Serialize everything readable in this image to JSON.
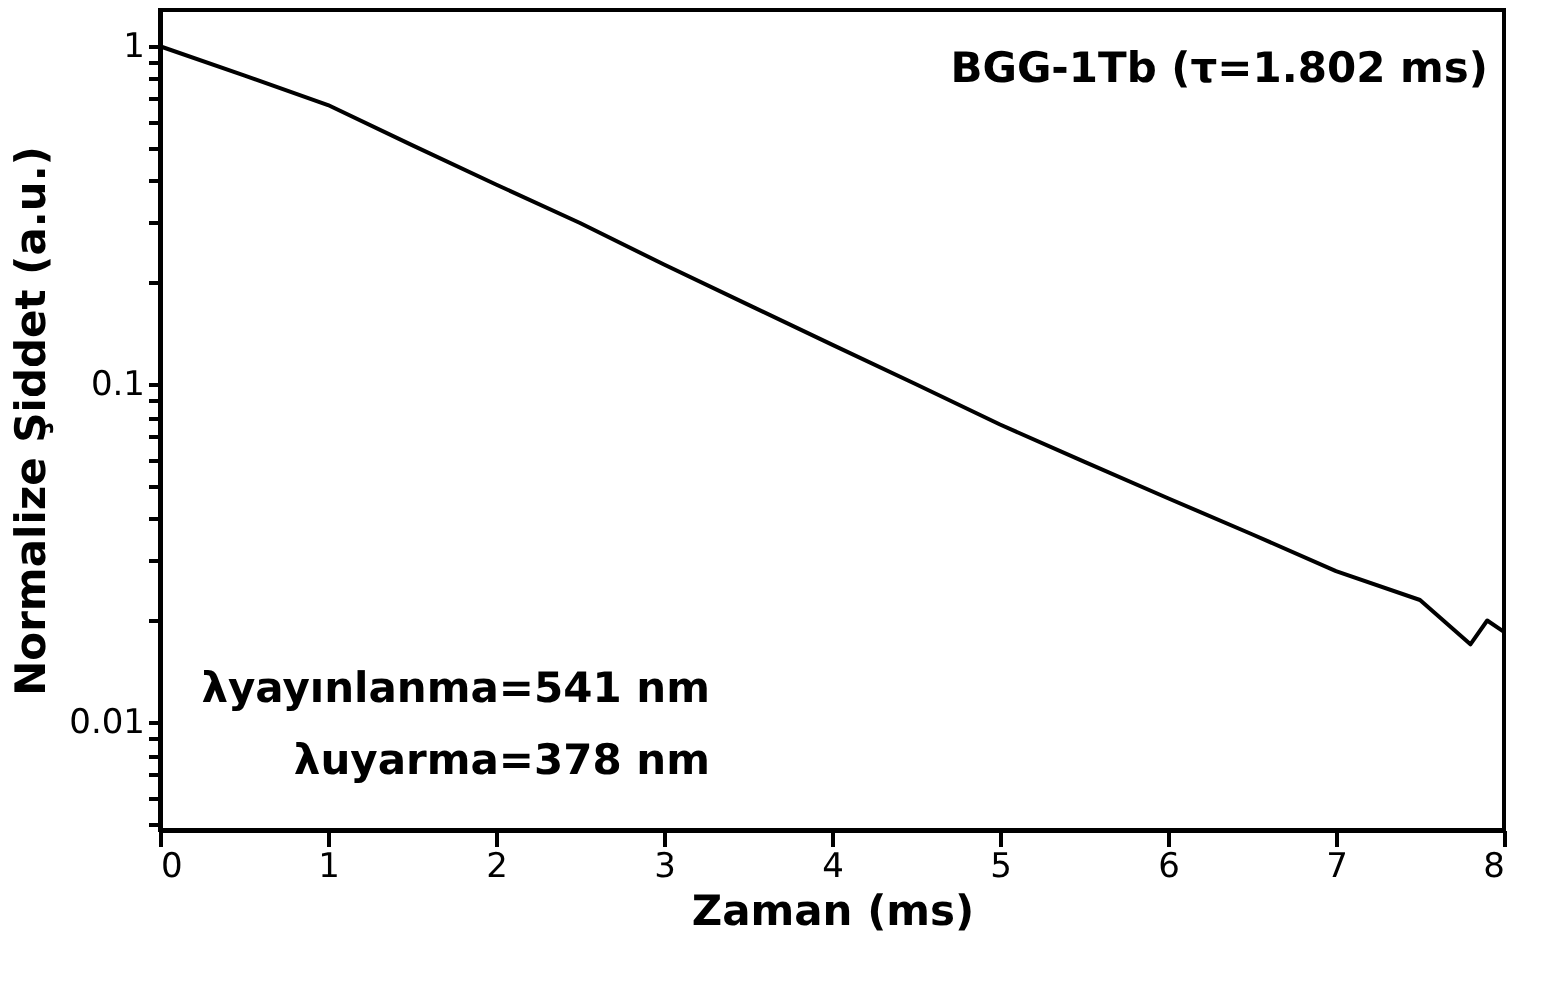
{
  "chart_data": {
    "type": "line",
    "xlabel": "Zaman (ms)",
    "ylabel": "Normalize Şiddet (a.u.)",
    "x": [
      0,
      0.5,
      1,
      1.5,
      2,
      2.5,
      3,
      3.5,
      4,
      4.5,
      5,
      5.5,
      6,
      6.5,
      7,
      7.5,
      7.8,
      7.9,
      8
    ],
    "series": [
      {
        "color": "#000000",
        "values": [
          1,
          0.82,
          0.67,
          0.51,
          0.39,
          0.3,
          0.226,
          0.172,
          0.131,
          0.1,
          0.076,
          0.059,
          0.046,
          0.036,
          0.028,
          0.023,
          0.017,
          0.02,
          0.0185
        ]
      }
    ],
    "xlim": [
      0,
      8
    ],
    "xticks": [
      0,
      1,
      2,
      3,
      4,
      5,
      6,
      7,
      8
    ],
    "ylim": [
      0.0048,
      1.28
    ],
    "log": true,
    "yticks": [
      {
        "value": 0.005,
        "label": null
      },
      {
        "value": 0.006,
        "label": null
      },
      {
        "value": 0.007,
        "label": null
      },
      {
        "value": 0.008,
        "label": null
      },
      {
        "value": 0.009,
        "label": null
      },
      0.01,
      {
        "value": 0.02,
        "label": null
      },
      {
        "value": 0.03,
        "label": null
      },
      {
        "value": 0.04,
        "label": null
      },
      {
        "value": 0.05,
        "label": null
      },
      {
        "value": 0.06,
        "label": null
      },
      {
        "value": 0.07,
        "label": null
      },
      {
        "value": 0.08,
        "label": null
      },
      {
        "value": 0.09,
        "label": null
      },
      0.1,
      {
        "value": 0.2,
        "label": null
      },
      {
        "value": 0.3,
        "label": null
      },
      {
        "value": 0.4,
        "label": null
      },
      {
        "value": 0.5,
        "label": null
      },
      {
        "value": 0.6,
        "label": null
      },
      {
        "value": 0.7,
        "label": null
      },
      {
        "value": 0.8,
        "label": null
      },
      {
        "value": 0.9,
        "label": null
      },
      1
    ],
    "grid": false,
    "line_style": "solid",
    "marker": "none",
    "annotations": [
      "BGG-1Tb (τ=1.802 ms)",
      "λyayınlanma=541 nm",
      "λuyarma=378 nm"
    ]
  }
}
